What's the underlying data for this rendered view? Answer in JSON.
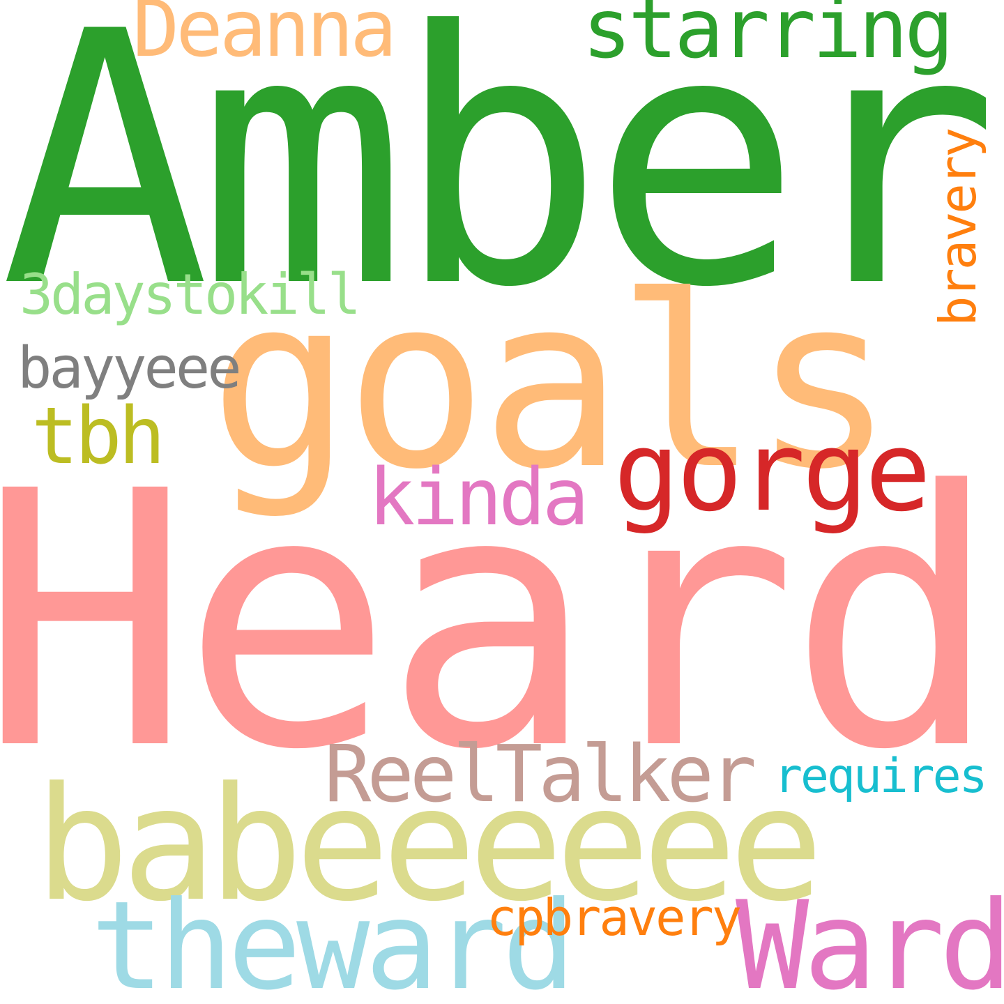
{
  "words": {
    "amber": {
      "text": "Amber",
      "color": "#2ca02c"
    },
    "heard": {
      "text": "Heard",
      "color": "#ff9896"
    },
    "goals": {
      "text": "goals",
      "color": "#ffbb78"
    },
    "babeeeeee": {
      "text": "babeeeeee",
      "color": "#dbdb8d"
    },
    "theward": {
      "text": "theward",
      "color": "#9edae5"
    },
    "ward": {
      "text": "Ward",
      "color": "#e377c2"
    },
    "gorge": {
      "text": "gorge",
      "color": "#d62728"
    },
    "reeltalker": {
      "text": "ReelTalker",
      "color": "#c49c94"
    },
    "starring": {
      "text": "starring",
      "color": "#2ca02c"
    },
    "deanna": {
      "text": "Deanna",
      "color": "#ffbb78"
    },
    "kinda": {
      "text": "kinda",
      "color": "#e377c2"
    },
    "tbh": {
      "text": "tbh",
      "color": "#bcbd22"
    },
    "bayyeee": {
      "text": "bayyeee",
      "color": "#7f7f7f"
    },
    "threedays": {
      "text": "3daystokill",
      "color": "#98df8a"
    },
    "requires": {
      "text": "requires",
      "color": "#17becf"
    },
    "cpbravery": {
      "text": "cpbravery",
      "color": "#ff7f0e"
    },
    "bravery": {
      "text": "bravery",
      "color": "#ff7f0e"
    }
  }
}
